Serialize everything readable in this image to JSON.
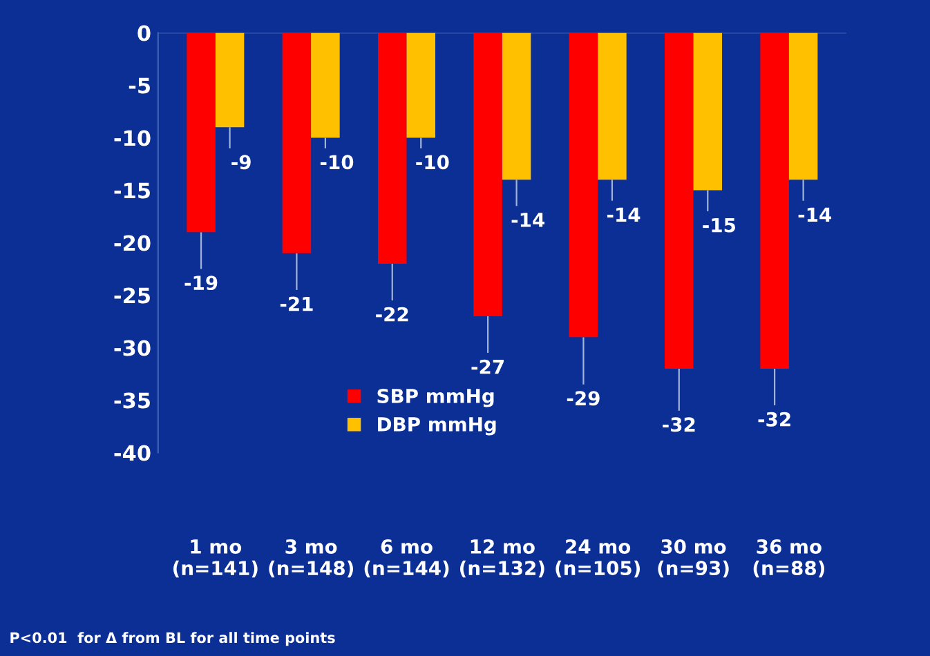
{
  "chart_data": {
    "type": "bar",
    "categories": [
      "1 mo\n(n=141)",
      "3 mo\n(n=148)",
      "6 mo\n(n=144)",
      "12 mo\n(n=132)",
      "24 mo\n(n=105)",
      "30 mo\n(n=93)",
      "36 mo\n(n=88)"
    ],
    "series": [
      {
        "name": "SBP mmHg",
        "color": "#ff0000",
        "values": [
          -19,
          -21,
          -22,
          -27,
          -29,
          -32,
          -32
        ],
        "errors": [
          [
            -22.5,
            -19
          ],
          [
            -24.5,
            -21
          ],
          [
            -25.5,
            -22
          ],
          [
            -30.5,
            -27
          ],
          [
            -33.5,
            -29
          ],
          [
            -36,
            -32
          ],
          [
            -35.5,
            -32
          ]
        ]
      },
      {
        "name": "DBP mmHg",
        "color": "#ffc000",
        "values": [
          -9,
          -10,
          -10,
          -14,
          -14,
          -15,
          -14
        ],
        "errors": [
          [
            -11,
            -9
          ],
          [
            -11,
            -10
          ],
          [
            -11,
            -10
          ],
          [
            -16.5,
            -14
          ],
          [
            -16,
            -14
          ],
          [
            -17,
            -15
          ],
          [
            -16,
            -14
          ]
        ]
      }
    ],
    "ylim": [
      -40,
      0
    ],
    "yticks": [
      -40,
      -35,
      -30,
      -25,
      -20,
      -15,
      -10,
      -5,
      0
    ],
    "data_labels": true,
    "legend": "bottom left",
    "grid": false,
    "annotations": [
      "P<0.01  for Δ from BL for all time points"
    ]
  }
}
